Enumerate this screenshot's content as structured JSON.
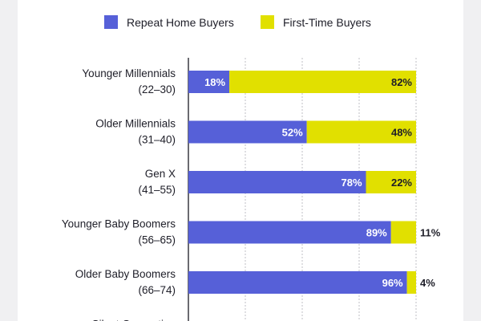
{
  "chart_data": {
    "type": "bar",
    "orientation": "horizontal",
    "stacked": true,
    "xlim": [
      0,
      100
    ],
    "grid": true,
    "legend_position": "top",
    "categories": [
      [
        "Younger Millennials",
        "(22–30)"
      ],
      [
        "Older Millennials",
        "(31–40)"
      ],
      [
        "Gen X",
        "(41–55)"
      ],
      [
        "Younger Baby Boomers",
        "(56–65)"
      ],
      [
        "Older Baby Boomers",
        "(66–74)"
      ],
      [
        "Silent Generation",
        ""
      ]
    ],
    "series": [
      {
        "name": "Repeat Home Buyers",
        "color": "#5660d8",
        "text_color": "#ffffff",
        "values": [
          18,
          52,
          78,
          89,
          96,
          null
        ],
        "labels": [
          "18%",
          "52%",
          "78%",
          "89%",
          "96%",
          ""
        ]
      },
      {
        "name": "First-Time Buyers",
        "color": "#e1e000",
        "text_color": "#1e1e28",
        "values": [
          82,
          48,
          22,
          11,
          4,
          null
        ],
        "labels": [
          "82%",
          "48%",
          "22%",
          "11%",
          "4%",
          ""
        ]
      }
    ]
  }
}
